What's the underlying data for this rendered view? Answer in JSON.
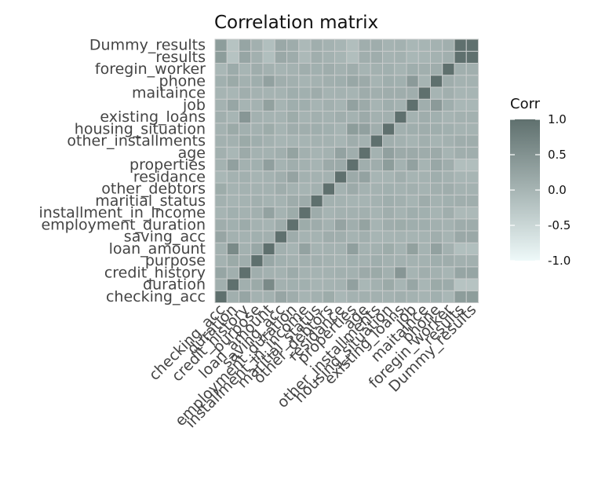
{
  "chart_data": {
    "type": "heatmap",
    "title": "Correlation matrix",
    "variables": [
      "checking_acc",
      "duration",
      "credit_history",
      "purpose",
      "loan_amount",
      "saving_acc",
      "employment_duration",
      "installment_in_income",
      "maritial_status",
      "other_debtors",
      "residance",
      "properties",
      "age",
      "other_installments",
      "housing_situation",
      "existing_loans",
      "job",
      "maitaince",
      "phone",
      "foregin_worker",
      "results",
      "Dummy_results"
    ],
    "scale": {
      "name": "Corr",
      "limits": [
        -1,
        1
      ],
      "ticks": [
        1.0,
        0.5,
        0.0,
        -0.5,
        -1.0
      ],
      "tick_labels": [
        "1.0",
        "0.5",
        "0.0",
        "-0.5",
        "-1.0"
      ],
      "low_color": "#eef9f9",
      "high_color": "#5f706e"
    },
    "legend_position": "right",
    "grid": "cell borders",
    "cells": [
      [
        1.0,
        0.08,
        0.23,
        0.03,
        0.05,
        0.22,
        0.11,
        0.01,
        0.05,
        0.13,
        -0.04,
        0.03,
        0.06,
        0.05,
        0.04,
        0.08,
        0.04,
        0.01,
        0.07,
        -0.03,
        0.35,
        0.35
      ],
      [
        0.08,
        1.0,
        0.08,
        0.16,
        0.62,
        0.05,
        0.07,
        0.07,
        0.01,
        0.02,
        0.03,
        0.3,
        -0.04,
        0.05,
        0.16,
        -0.01,
        0.21,
        -0.02,
        0.16,
        0.14,
        -0.21,
        -0.21
      ],
      [
        0.23,
        0.08,
        1.0,
        0.09,
        0.05,
        0.04,
        0.14,
        0.04,
        0.02,
        0.03,
        0.06,
        0.05,
        0.15,
        0.16,
        0.06,
        0.44,
        0.01,
        0.09,
        0.05,
        0.0,
        0.23,
        0.23
      ],
      [
        0.03,
        0.16,
        0.09,
        1.0,
        0.2,
        0.07,
        0.03,
        0.06,
        0.06,
        0.04,
        0.01,
        0.07,
        0.03,
        0.1,
        0.05,
        0.05,
        0.03,
        0.04,
        0.1,
        0.11,
        0.06,
        0.06
      ],
      [
        0.05,
        0.62,
        0.05,
        0.2,
        1.0,
        0.06,
        0.01,
        0.27,
        0.02,
        0.04,
        0.03,
        0.31,
        0.03,
        0.05,
        0.13,
        0.02,
        0.29,
        0.02,
        0.28,
        0.05,
        -0.15,
        -0.15
      ],
      [
        0.22,
        0.05,
        0.04,
        0.07,
        0.06,
        1.0,
        0.12,
        0.02,
        0.02,
        0.11,
        0.09,
        0.02,
        0.08,
        0.0,
        0.01,
        0.02,
        0.01,
        0.02,
        0.09,
        0.01,
        0.18,
        0.18
      ],
      [
        0.11,
        0.07,
        0.14,
        0.03,
        0.01,
        0.12,
        1.0,
        0.13,
        0.12,
        0.03,
        0.25,
        0.09,
        0.26,
        0.01,
        0.11,
        0.13,
        0.1,
        0.1,
        0.06,
        0.03,
        0.12,
        0.12
      ],
      [
        0.01,
        0.07,
        0.04,
        0.06,
        0.27,
        0.02,
        0.13,
        1.0,
        0.12,
        0.01,
        0.05,
        0.05,
        0.06,
        0.01,
        0.09,
        0.02,
        0.1,
        0.07,
        0.01,
        0.09,
        -0.07,
        -0.07
      ],
      [
        0.05,
        0.01,
        0.02,
        0.06,
        0.02,
        0.02,
        0.12,
        0.12,
        1.0,
        0.05,
        0.03,
        0.01,
        0.01,
        0.03,
        0.1,
        0.06,
        0.01,
        0.12,
        0.03,
        0.07,
        0.09,
        0.09
      ],
      [
        0.13,
        0.02,
        0.03,
        0.04,
        0.04,
        0.11,
        0.03,
        0.01,
        0.05,
        1.0,
        0.03,
        0.15,
        0.03,
        0.04,
        0.07,
        0.03,
        0.06,
        0.02,
        0.08,
        0.11,
        0.03,
        0.03
      ],
      [
        -0.04,
        0.03,
        0.06,
        0.01,
        0.03,
        0.09,
        0.25,
        0.05,
        0.03,
        0.03,
        1.0,
        0.15,
        0.27,
        0.0,
        0.01,
        0.09,
        0.01,
        0.04,
        0.1,
        0.05,
        0.0,
        0.0
      ],
      [
        0.03,
        0.3,
        0.05,
        0.07,
        0.31,
        0.02,
        0.09,
        0.05,
        0.01,
        0.15,
        0.15,
        1.0,
        0.09,
        0.11,
        0.35,
        0.03,
        0.28,
        0.01,
        0.2,
        0.11,
        -0.14,
        -0.14
      ],
      [
        0.06,
        -0.04,
        0.15,
        0.03,
        0.03,
        0.08,
        0.26,
        0.06,
        0.01,
        0.03,
        0.27,
        0.09,
        1.0,
        0.04,
        0.3,
        0.15,
        0.15,
        0.12,
        0.15,
        0.01,
        0.09,
        0.09
      ],
      [
        0.05,
        0.05,
        0.16,
        0.1,
        0.05,
        0.0,
        0.01,
        0.01,
        0.03,
        0.04,
        0.0,
        0.11,
        0.04,
        1.0,
        0.09,
        0.05,
        0.01,
        0.08,
        0.01,
        0.05,
        0.11,
        0.11
      ],
      [
        0.04,
        0.16,
        0.06,
        0.05,
        0.13,
        0.01,
        0.11,
        0.09,
        0.1,
        0.07,
        0.01,
        0.35,
        0.3,
        0.09,
        1.0,
        0.06,
        0.1,
        0.11,
        0.1,
        0.07,
        0.02,
        0.02
      ],
      [
        0.08,
        -0.01,
        0.44,
        0.05,
        0.02,
        0.02,
        0.13,
        0.02,
        0.06,
        0.03,
        0.09,
        0.03,
        0.15,
        0.05,
        0.06,
        1.0,
        0.03,
        0.11,
        0.07,
        0.01,
        0.05,
        0.05
      ],
      [
        0.04,
        0.21,
        0.01,
        0.03,
        0.29,
        0.01,
        0.1,
        0.1,
        0.01,
        0.06,
        0.01,
        0.28,
        0.15,
        0.01,
        0.1,
        0.03,
        1.0,
        0.09,
        0.38,
        0.1,
        -0.03,
        -0.03
      ],
      [
        0.01,
        -0.02,
        0.09,
        0.04,
        0.02,
        0.02,
        0.1,
        0.07,
        0.12,
        0.02,
        0.04,
        0.01,
        0.12,
        0.08,
        0.11,
        0.11,
        0.09,
        1.0,
        0.01,
        0.08,
        0.0,
        0.0
      ],
      [
        0.07,
        0.16,
        0.05,
        0.1,
        0.28,
        0.09,
        0.06,
        0.01,
        0.03,
        0.08,
        0.1,
        0.2,
        0.15,
        0.01,
        0.1,
        0.07,
        0.38,
        0.01,
        1.0,
        0.11,
        0.04,
        0.04
      ],
      [
        -0.03,
        0.14,
        0.0,
        0.11,
        0.05,
        0.01,
        0.03,
        0.09,
        0.07,
        0.11,
        0.05,
        0.11,
        0.01,
        0.05,
        0.07,
        0.01,
        0.1,
        0.08,
        0.11,
        1.0,
        0.08,
        0.08
      ],
      [
        0.35,
        -0.21,
        0.23,
        0.06,
        -0.15,
        0.18,
        0.12,
        -0.07,
        0.09,
        0.03,
        0.0,
        -0.14,
        0.09,
        0.11,
        0.02,
        0.05,
        -0.03,
        0.0,
        0.04,
        0.08,
        1.0,
        1.0
      ],
      [
        0.35,
        -0.21,
        0.23,
        0.06,
        -0.15,
        0.18,
        0.12,
        -0.07,
        0.09,
        0.03,
        0.0,
        -0.14,
        0.09,
        0.11,
        0.02,
        0.05,
        -0.03,
        0.0,
        0.04,
        0.08,
        1.0,
        1.0
      ]
    ]
  }
}
